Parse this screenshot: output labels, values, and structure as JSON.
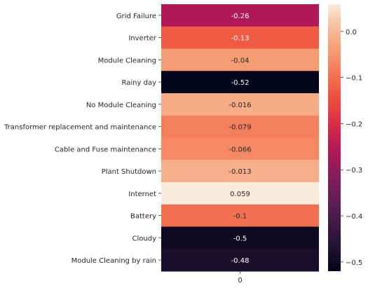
{
  "chart_data": {
    "type": "heatmap",
    "title": "",
    "xlabel": "",
    "ylabel": "",
    "x": [
      "0"
    ],
    "rows": [
      {
        "label": "Grid Failure",
        "value": -0.26,
        "text": "-0.26"
      },
      {
        "label": "Inverter",
        "value": -0.13,
        "text": "-0.13"
      },
      {
        "label": "Module Cleaning",
        "value": -0.04,
        "text": "-0.04"
      },
      {
        "label": "Rainy day",
        "value": -0.52,
        "text": "-0.52"
      },
      {
        "label": "No Module Cleaning",
        "value": -0.016,
        "text": "-0.016"
      },
      {
        "label": "Transformer replacement and maintenance",
        "value": -0.079,
        "text": "-0.079"
      },
      {
        "label": "Cable and Fuse maintenance",
        "value": -0.066,
        "text": "-0.066"
      },
      {
        "label": "Plant Shutdown",
        "value": -0.013,
        "text": "-0.013"
      },
      {
        "label": "Internet",
        "value": 0.059,
        "text": "0.059"
      },
      {
        "label": "Battery",
        "value": -0.1,
        "text": "-0.1"
      },
      {
        "label": "Cloudy",
        "value": -0.5,
        "text": "-0.5"
      },
      {
        "label": "Module Cleaning by rain",
        "value": -0.48,
        "text": "-0.48"
      }
    ],
    "colorbar": {
      "range": [
        -0.52,
        0.059
      ],
      "ticks": [
        {
          "value": 0.0,
          "label": "0.0"
        },
        {
          "value": -0.1,
          "label": "−0.1"
        },
        {
          "value": -0.2,
          "label": "−0.2"
        },
        {
          "value": -0.3,
          "label": "−0.3"
        },
        {
          "value": -0.4,
          "label": "−0.4"
        },
        {
          "value": -0.5,
          "label": "−0.5"
        }
      ]
    },
    "colormap": "rocket",
    "legend": "colorbar-right"
  }
}
